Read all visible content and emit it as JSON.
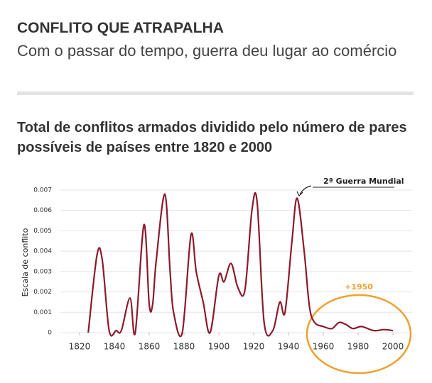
{
  "header": {
    "title": "CONFLITO QUE ATRAPALHA",
    "subtitle": "Com o passar do tempo, guerra deu lugar ao comércio"
  },
  "chart_data": {
    "type": "line",
    "title": "Total de conflitos armados dividido pelo número de pares possíveis de países entre 1820 e 2000",
    "y_label": "Escala de conflito",
    "annotations": [
      "2ª Guerra Mundial",
      "+1950"
    ],
    "x": [
      1825,
      1830,
      1833,
      1837,
      1841,
      1844,
      1849,
      1852,
      1857,
      1860,
      1862,
      1864,
      1869,
      1872,
      1874,
      1879,
      1884,
      1887,
      1891,
      1895,
      1900,
      1903,
      1907,
      1911,
      1915,
      1919,
      1922,
      1926,
      1931,
      1935,
      1938,
      1942,
      1945,
      1949,
      1952,
      1955,
      1960,
      1965,
      1969,
      1973,
      1977,
      1982,
      1989,
      1995,
      2000
    ],
    "series": [
      {
        "name": "Escala de conflito",
        "color": "#8b1a2b",
        "values": [
          0,
          0.0038,
          0.0036,
          0.0001,
          0.0001,
          0.0001,
          0.0017,
          0,
          0.0053,
          0.0014,
          0.0014,
          0.0035,
          0.0068,
          0.003,
          0.001,
          0,
          0.0048,
          0.003,
          0.0015,
          0,
          0.0028,
          0.0025,
          0.0034,
          0.0022,
          0.0021,
          0.006,
          0.0064,
          0.0005,
          0.0001,
          0.0015,
          0.001,
          0.0045,
          0.0066,
          0.004,
          0.0013,
          0.0005,
          0.0003,
          0.0002,
          0.0005,
          0.0004,
          0.0002,
          0.0003,
          0.0001,
          0.00015,
          0.0001
        ]
      }
    ],
    "xlim": [
      1809,
      2011
    ],
    "ylim": [
      0,
      0.007
    ],
    "xticks": [
      1820,
      1840,
      1860,
      1880,
      1900,
      1920,
      1940,
      1960,
      1980,
      2000
    ],
    "yticks": [
      0,
      0.001,
      0.002,
      0.003,
      0.004,
      0.005,
      0.006,
      0.007
    ],
    "grid": true
  }
}
